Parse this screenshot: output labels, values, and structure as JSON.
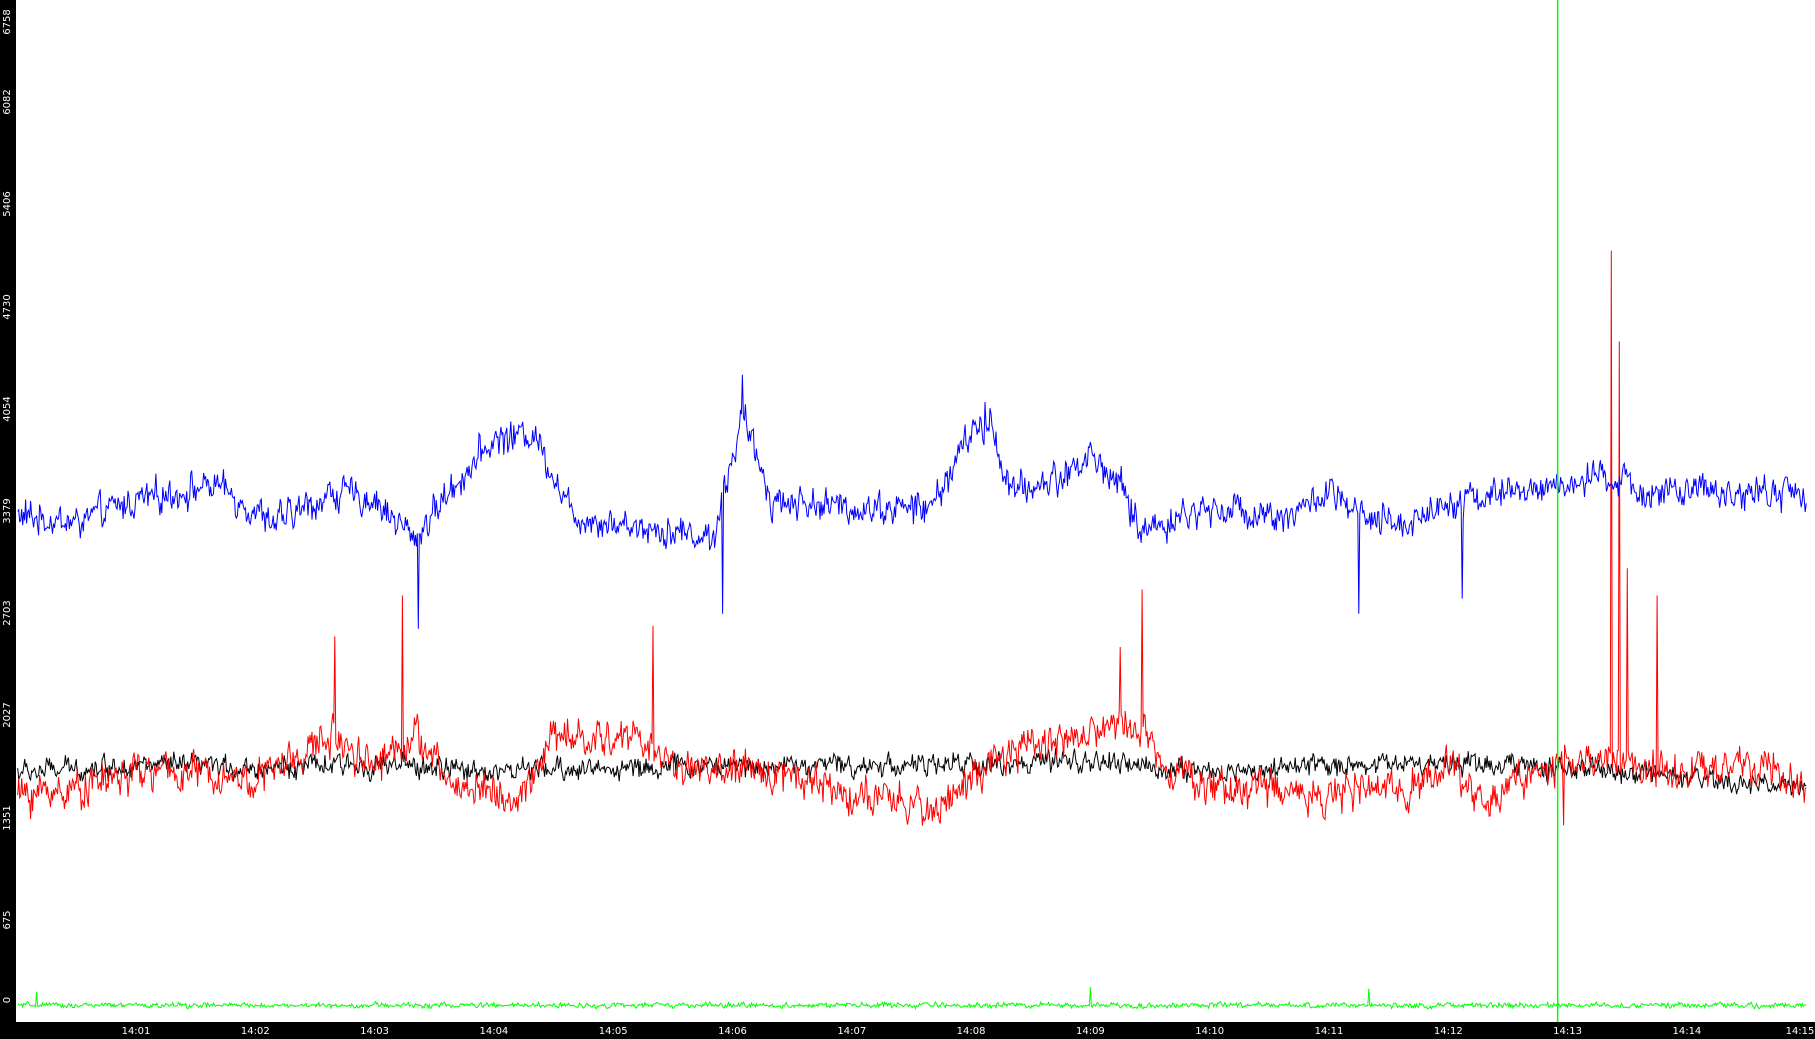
{
  "chart_data": {
    "type": "line",
    "title": "",
    "xlabel": "",
    "ylabel": "",
    "ylim": [
      0,
      6758
    ],
    "xlim": [
      "14:00:00",
      "14:15:00"
    ],
    "grid": false,
    "legend": "none",
    "y_ticks": [
      "0",
      "675",
      "1351",
      "2027",
      "2703",
      "3379",
      "4054",
      "4730",
      "5406",
      "6082",
      "6758"
    ],
    "x_ticks": [
      "14:01",
      "14:02",
      "14:03",
      "14:04",
      "14:05",
      "14:06",
      "14:07",
      "14:08",
      "14:09",
      "14:10",
      "14:11",
      "14:12",
      "14:13",
      "14:14",
      "14:15"
    ],
    "cursor_time": "14:12:55",
    "series": [
      {
        "color": "#0000ff",
        "base": 3350,
        "noise": 140,
        "keypoints": [
          [
            "14:00:00",
            3350
          ],
          [
            "14:00:30",
            3300
          ],
          [
            "14:01:00",
            3450
          ],
          [
            "14:01:40",
            3550
          ],
          [
            "14:02:10",
            3300
          ],
          [
            "14:02:40",
            3500
          ],
          [
            "14:03:00",
            3450
          ],
          [
            "14:03:20",
            3200
          ],
          [
            "14:03:40",
            3550
          ],
          [
            "14:04:00",
            3850
          ],
          [
            "14:04:20",
            3900
          ],
          [
            "14:04:40",
            3350
          ],
          [
            "14:05:00",
            3300
          ],
          [
            "14:05:30",
            3250
          ],
          [
            "14:05:50",
            3200
          ],
          [
            "14:06:05",
            4000
          ],
          [
            "14:06:20",
            3450
          ],
          [
            "14:07:00",
            3400
          ],
          [
            "14:07:40",
            3400
          ],
          [
            "14:08:00",
            3900
          ],
          [
            "14:08:10",
            3950
          ],
          [
            "14:08:20",
            3500
          ],
          [
            "14:08:45",
            3600
          ],
          [
            "14:09:00",
            3750
          ],
          [
            "14:09:15",
            3550
          ],
          [
            "14:09:25",
            3250
          ],
          [
            "14:10:00",
            3400
          ],
          [
            "14:10:40",
            3350
          ],
          [
            "14:11:00",
            3500
          ],
          [
            "14:11:20",
            3300
          ],
          [
            "14:11:40",
            3300
          ],
          [
            "14:12:00",
            3450
          ],
          [
            "14:12:30",
            3500
          ],
          [
            "14:13:00",
            3550
          ],
          [
            "14:13:20",
            3600
          ],
          [
            "14:13:40",
            3500
          ],
          [
            "14:14:10",
            3500
          ],
          [
            "14:14:40",
            3500
          ],
          [
            "14:15:00",
            3500
          ]
        ],
        "spikes": [
          [
            "14:06:05",
            4280
          ],
          [
            "14:08:07",
            4100
          ],
          [
            "14:03:22",
            2600
          ],
          [
            "14:05:55",
            2700
          ],
          [
            "14:11:15",
            2700
          ],
          [
            "14:12:07",
            2800
          ]
        ]
      },
      {
        "color": "#ff0000",
        "base": 1650,
        "noise": 160,
        "keypoints": [
          [
            "14:00:00",
            1500
          ],
          [
            "14:00:30",
            1550
          ],
          [
            "14:01:00",
            1650
          ],
          [
            "14:01:30",
            1650
          ],
          [
            "14:02:00",
            1600
          ],
          [
            "14:02:40",
            1900
          ],
          [
            "14:03:00",
            1700
          ],
          [
            "14:03:20",
            1900
          ],
          [
            "14:03:40",
            1550
          ],
          [
            "14:04:00",
            1550
          ],
          [
            "14:04:10",
            1400
          ],
          [
            "14:04:30",
            1900
          ],
          [
            "14:04:50",
            1850
          ],
          [
            "14:05:10",
            1900
          ],
          [
            "14:05:30",
            1700
          ],
          [
            "14:06:00",
            1650
          ],
          [
            "14:06:30",
            1650
          ],
          [
            "14:07:00",
            1500
          ],
          [
            "14:07:20",
            1450
          ],
          [
            "14:07:40",
            1400
          ],
          [
            "14:08:00",
            1600
          ],
          [
            "14:08:30",
            1850
          ],
          [
            "14:09:00",
            1900
          ],
          [
            "14:09:20",
            2000
          ],
          [
            "14:09:40",
            1700
          ],
          [
            "14:10:00",
            1550
          ],
          [
            "14:10:30",
            1550
          ],
          [
            "14:11:00",
            1500
          ],
          [
            "14:11:40",
            1550
          ],
          [
            "14:12:00",
            1700
          ],
          [
            "14:12:20",
            1450
          ],
          [
            "14:12:40",
            1650
          ],
          [
            "14:13:00",
            1700
          ],
          [
            "14:13:20",
            1750
          ],
          [
            "14:13:40",
            1700
          ],
          [
            "14:14:00",
            1650
          ],
          [
            "14:14:30",
            1700
          ],
          [
            "14:15:00",
            1550
          ]
        ],
        "spikes": [
          [
            "14:03:14",
            2820
          ],
          [
            "14:02:40",
            2550
          ],
          [
            "14:05:20",
            2620
          ],
          [
            "14:09:26",
            2860
          ],
          [
            "14:09:15",
            2480
          ],
          [
            "14:13:22",
            5100
          ],
          [
            "14:13:26",
            4500
          ],
          [
            "14:13:30",
            3000
          ],
          [
            "14:13:45",
            2820
          ],
          [
            "14:12:58",
            1300
          ]
        ]
      },
      {
        "color": "#000000",
        "base": 1650,
        "noise": 95,
        "keypoints": [
          [
            "14:00:00",
            1650
          ],
          [
            "14:01:00",
            1700
          ],
          [
            "14:02:00",
            1680
          ],
          [
            "14:03:00",
            1700
          ],
          [
            "14:04:00",
            1660
          ],
          [
            "14:05:00",
            1680
          ],
          [
            "14:06:00",
            1700
          ],
          [
            "14:07:00",
            1700
          ],
          [
            "14:08:00",
            1700
          ],
          [
            "14:09:00",
            1720
          ],
          [
            "14:10:00",
            1650
          ],
          [
            "14:11:00",
            1700
          ],
          [
            "14:12:00",
            1720
          ],
          [
            "14:13:00",
            1680
          ],
          [
            "14:14:00",
            1600
          ],
          [
            "14:15:00",
            1550
          ]
        ],
        "spikes": []
      },
      {
        "color": "#00ff00",
        "base": 100,
        "noise": 22,
        "keypoints": [
          [
            "14:00:00",
            110
          ],
          [
            "14:15:00",
            110
          ]
        ],
        "spikes": [
          [
            "14:09:00",
            230
          ],
          [
            "14:11:20",
            220
          ],
          [
            "14:00:10",
            200
          ]
        ]
      }
    ]
  }
}
